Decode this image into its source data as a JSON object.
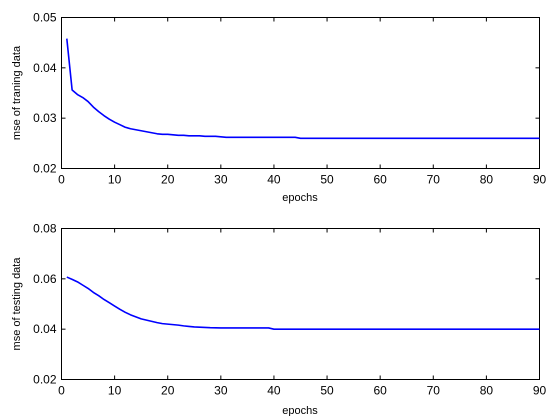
{
  "chart_data": [
    {
      "type": "line",
      "title": "",
      "xlabel": "epochs",
      "ylabel": "mse of traning data",
      "xlim": [
        0,
        90
      ],
      "ylim": [
        0.02,
        0.05
      ],
      "xticks": [
        "0",
        "10",
        "20",
        "30",
        "40",
        "50",
        "60",
        "70",
        "80",
        "90"
      ],
      "yticks": [
        "0.02",
        "0.03",
        "0.04",
        "0.05"
      ],
      "grid": false,
      "line_color": "#0000ff",
      "series": [
        {
          "x": [
            1,
            2,
            3,
            4,
            5,
            6,
            7,
            8,
            9,
            10,
            11,
            12,
            13,
            14,
            15,
            16,
            17,
            18,
            19,
            20,
            21,
            22,
            23,
            24,
            25,
            26,
            27,
            28,
            29,
            30,
            31,
            35,
            40,
            44,
            45,
            50,
            60,
            70,
            80,
            90
          ],
          "values": [
            0.0458,
            0.0356,
            0.0347,
            0.0341,
            0.0333,
            0.0322,
            0.0313,
            0.0305,
            0.0298,
            0.0292,
            0.0287,
            0.0282,
            0.0279,
            0.0277,
            0.0275,
            0.0273,
            0.0271,
            0.0269,
            0.0268,
            0.0268,
            0.0267,
            0.0266,
            0.0266,
            0.0265,
            0.0265,
            0.0265,
            0.0264,
            0.0264,
            0.0264,
            0.0263,
            0.0262,
            0.0262,
            0.0262,
            0.0262,
            0.026,
            0.026,
            0.026,
            0.026,
            0.026,
            0.026
          ]
        }
      ]
    },
    {
      "type": "line",
      "title": "",
      "xlabel": "epochs",
      "ylabel": "mse of testing data",
      "xlim": [
        0,
        90
      ],
      "ylim": [
        0.02,
        0.08
      ],
      "xticks": [
        "0",
        "10",
        "20",
        "30",
        "40",
        "50",
        "60",
        "70",
        "80",
        "90"
      ],
      "yticks": [
        "0.02",
        "0.04",
        "0.06",
        "0.08"
      ],
      "grid": false,
      "line_color": "#0000ff",
      "series": [
        {
          "x": [
            1,
            2,
            3,
            4,
            5,
            6,
            7,
            8,
            9,
            10,
            11,
            12,
            13,
            14,
            15,
            16,
            17,
            18,
            19,
            20,
            21,
            22,
            23,
            24,
            25,
            26,
            27,
            28,
            30,
            35,
            39,
            40,
            50,
            60,
            70,
            80,
            90
          ],
          "values": [
            0.0607,
            0.0598,
            0.0588,
            0.0575,
            0.0562,
            0.0546,
            0.0533,
            0.0518,
            0.0505,
            0.0492,
            0.0479,
            0.0467,
            0.0457,
            0.0449,
            0.0441,
            0.0436,
            0.0431,
            0.0426,
            0.0422,
            0.042,
            0.0418,
            0.0416,
            0.0413,
            0.0411,
            0.0409,
            0.0408,
            0.0407,
            0.0406,
            0.0405,
            0.0405,
            0.0405,
            0.04,
            0.04,
            0.04,
            0.04,
            0.04,
            0.04
          ]
        }
      ]
    }
  ]
}
